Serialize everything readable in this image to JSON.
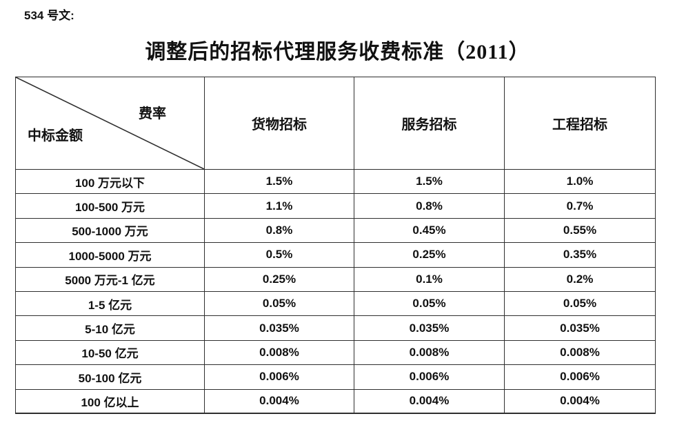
{
  "doc": {
    "ref_label": "534 号文:",
    "title": "调整后的招标代理服务收费标准（2011）"
  },
  "table": {
    "corner": {
      "top_right": "费率",
      "bottom_left": "中标金额"
    },
    "columns": [
      "货物招标",
      "服务招标",
      "工程招标"
    ],
    "rows": [
      [
        "100 万元以下",
        "1.5%",
        "1.5%",
        "1.0%"
      ],
      [
        "100-500 万元",
        "1.1%",
        "0.8%",
        "0.7%"
      ],
      [
        "500-1000 万元",
        "0.8%",
        "0.45%",
        "0.55%"
      ],
      [
        "1000-5000 万元",
        "0.5%",
        "0.25%",
        "0.35%"
      ],
      [
        "5000 万元-1 亿元",
        "0.25%",
        "0.1%",
        "0.2%"
      ],
      [
        "1-5 亿元",
        "0.05%",
        "0.05%",
        "0.05%"
      ],
      [
        "5-10 亿元",
        "0.035%",
        "0.035%",
        "0.035%"
      ],
      [
        "10-50 亿元",
        "0.008%",
        "0.008%",
        "0.008%"
      ],
      [
        "50-100 亿元",
        "0.006%",
        "0.006%",
        "0.006%"
      ],
      [
        "100 亿以上",
        "0.004%",
        "0.004%",
        "0.004%"
      ]
    ]
  },
  "colors": {
    "text": "#111111",
    "border": "#2e2e2e",
    "background": "#ffffff"
  }
}
